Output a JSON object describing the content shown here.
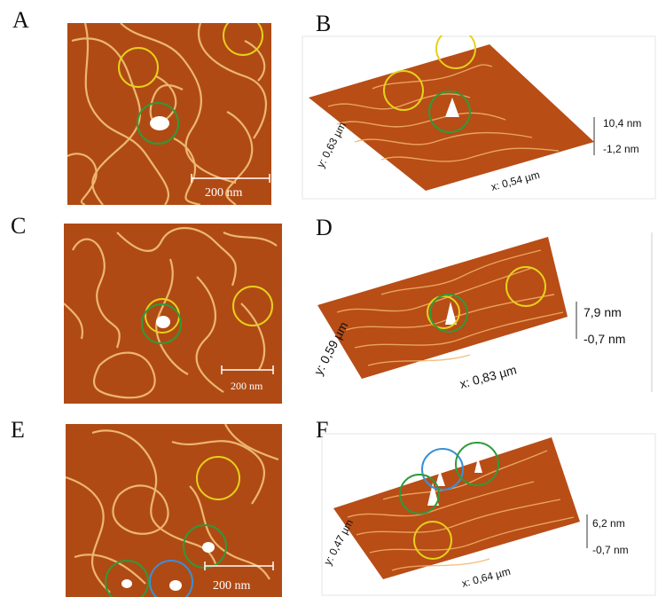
{
  "panels": [
    {
      "letter": "A",
      "scale_bar": "200 nm",
      "circles": [
        {
          "color": "#e6d11a"
        },
        {
          "color": "#e6d11a"
        },
        {
          "color": "#2e9a3a"
        }
      ]
    },
    {
      "letter": "B",
      "y_axis": "y: 0,63 µm",
      "x_axis": "x: 0,54 µm",
      "z_max": "10,4 nm",
      "z_min": "-1,2 nm",
      "circles": [
        {
          "color": "#e6d11a"
        },
        {
          "color": "#e6d11a"
        },
        {
          "color": "#2e9a3a"
        }
      ]
    },
    {
      "letter": "C",
      "scale_bar": "200 nm",
      "circles": [
        {
          "color": "#e6d11a"
        },
        {
          "color": "#2e9a3a"
        },
        {
          "color": "#e6d11a"
        }
      ]
    },
    {
      "letter": "D",
      "y_axis": "y: 0,59 µm",
      "x_axis": "x: 0,83 µm",
      "z_max": "7,9 nm",
      "z_min": "-0,7 nm",
      "circles": [
        {
          "color": "#e6d11a"
        },
        {
          "color": "#2e9a3a"
        },
        {
          "color": "#e6d11a"
        }
      ]
    },
    {
      "letter": "E",
      "scale_bar": "200 nm",
      "circles": [
        {
          "color": "#e6d11a"
        },
        {
          "color": "#2e9a3a"
        },
        {
          "color": "#2e9a3a"
        },
        {
          "color": "#3a8fd6"
        }
      ]
    },
    {
      "letter": "F",
      "y_axis": "y: 0,47 µm",
      "x_axis": "x: 0,64 µm",
      "z_max": "6,2 nm",
      "z_min": "-0,7 nm",
      "circles": [
        {
          "color": "#3a8fd6"
        },
        {
          "color": "#2e9a3a"
        },
        {
          "color": "#2e9a3a"
        },
        {
          "color": "#e6d11a"
        }
      ]
    }
  ]
}
